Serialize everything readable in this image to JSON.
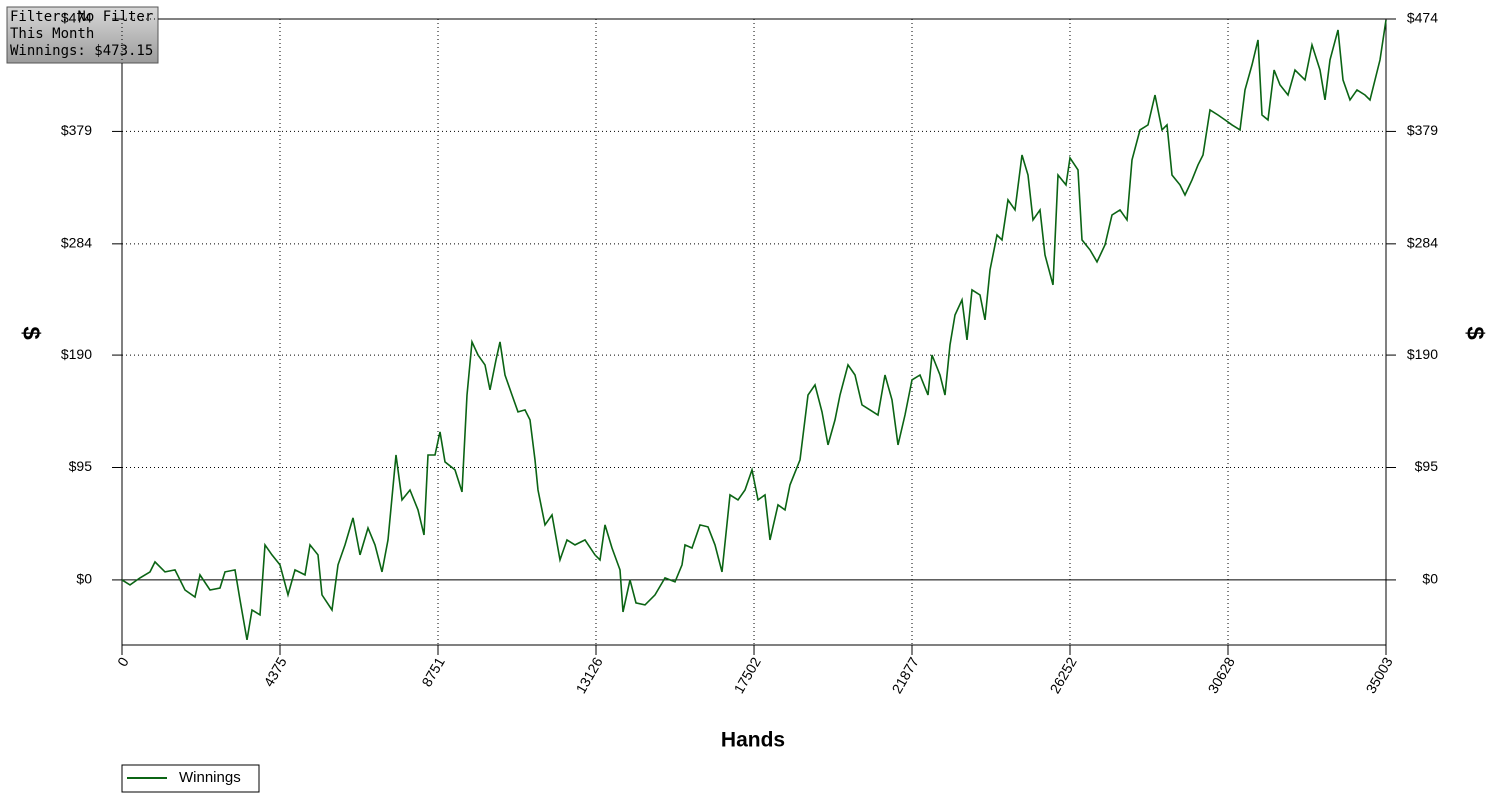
{
  "chart_data": {
    "type": "line",
    "annotation": [
      "Filter: No Filter",
      "This Month",
      "Winnings: $473.15"
    ],
    "x_label": "Hands",
    "y_label": "$",
    "legend": "bottom-left",
    "grid": true,
    "xlim": [
      0,
      35003
    ],
    "ylim": [
      -55,
      474
    ],
    "xticks": [
      0,
      4375,
      8751,
      13126,
      17502,
      21877,
      26252,
      30628,
      35003
    ],
    "yticks": [
      {
        "value": 0,
        "label": "$0"
      },
      {
        "value": 95,
        "label": "$95"
      },
      {
        "value": 190,
        "label": "$190"
      },
      {
        "value": 284,
        "label": "$284"
      },
      {
        "value": 379,
        "label": "$379"
      },
      {
        "value": 474,
        "label": "$474"
      }
    ],
    "x": [
      0,
      222,
      498,
      775,
      914,
      1191,
      1468,
      1745,
      2022,
      2160,
      2437,
      2714,
      2852,
      3129,
      3268,
      3462,
      3600,
      3822,
      3960,
      4154,
      4375,
      4597,
      4791,
      5068,
      5206,
      5428,
      5539,
      5816,
      5982,
      6176,
      6397,
      6591,
      6812,
      7006,
      7200,
      7366,
      7588,
      7754,
      7976,
      8197,
      8363,
      8474,
      8668,
      8806,
      8945,
      9222,
      9416,
      9554,
      9693,
      9859,
      10053,
      10191,
      10357,
      10468,
      10606,
      10800,
      10966,
      11160,
      11299,
      11437,
      11520,
      11714,
      11908,
      12130,
      12323,
      12545,
      12822,
      13099,
      13237,
      13376,
      13570,
      13791,
      13874,
      14068,
      14234,
      14483,
      14760,
      15037,
      15314,
      15508,
      15591,
      15785,
      16007,
      16228,
      16422,
      16616,
      16837,
      17059,
      17253,
      17447,
      17613,
      17806,
      17945,
      18167,
      18360,
      18499,
      18776,
      18997,
      19191,
      19385,
      19551,
      19745,
      19884,
      20105,
      20299,
      20493,
      20714,
      20936,
      21130,
      21324,
      21490,
      21684,
      21877,
      22099,
      22321,
      22431,
      22653,
      22791,
      22930,
      23068,
      23262,
      23401,
      23539,
      23761,
      23899,
      24038,
      24231,
      24370,
      24536,
      24730,
      24924,
      25090,
      25228,
      25422,
      25561,
      25782,
      25921,
      26142,
      26253,
      26474,
      26585,
      26807,
      27001,
      27222,
      27416,
      27638,
      27831,
      27970,
      28191,
      28413,
      28607,
      28801,
      28939,
      29078,
      29299,
      29438,
      29632,
      29798,
      29936,
      30130,
      30352,
      30545,
      30739,
      30961,
      31099,
      31293,
      31459,
      31570,
      31736,
      31903,
      32069,
      32290,
      32484,
      32761,
      32955,
      33176,
      33315,
      33453,
      33675,
      33813,
      34007,
      34201,
      34422,
      34561,
      34699,
      34838,
      35003
    ],
    "series": [
      {
        "name": "Winnings",
        "color": "#0b6414",
        "values": [
          0,
          -4.2,
          1.7,
          6.8,
          15.2,
          6.8,
          8.5,
          -8.5,
          -14.4,
          4.2,
          -8.5,
          -6.8,
          6.8,
          8.5,
          -16.9,
          -50.7,
          -25.4,
          -29.6,
          29.6,
          21.1,
          12.7,
          -12.7,
          8.5,
          4.2,
          29.6,
          21.1,
          -12.7,
          -25.4,
          12.7,
          29.6,
          52.4,
          21.1,
          43.9,
          29.6,
          6.8,
          33.8,
          105.6,
          67.6,
          76.0,
          59.2,
          38.0,
          105.6,
          105.6,
          125.1,
          99.7,
          93.0,
          74.4,
          156.3,
          201.1,
          190.1,
          181.7,
          160.6,
          185.9,
          201.1,
          173.2,
          156.3,
          142.0,
          143.7,
          135.2,
          101.4,
          76.0,
          46.5,
          54.9,
          16.9,
          33.8,
          29.6,
          33.8,
          21.1,
          16.9,
          46.5,
          27.0,
          8.5,
          -27.0,
          0,
          -19.4,
          -21.1,
          -12.7,
          1.7,
          -1.7,
          12.7,
          29.6,
          27.0,
          46.5,
          44.8,
          29.6,
          6.8,
          71.8,
          67.6,
          76.0,
          93.0,
          67.6,
          71.8,
          33.8,
          63.4,
          59.2,
          80.3,
          101.4,
          156.3,
          164.8,
          142.0,
          114.1,
          135.2,
          156.3,
          181.7,
          173.2,
          147.9,
          143.7,
          139.4,
          173.2,
          152.1,
          114.1,
          139.4,
          169.0,
          173.2,
          156.3,
          190.1,
          173.2,
          156.3,
          198.6,
          223.9,
          236.6,
          202.8,
          245.1,
          240.8,
          219.7,
          261.9,
          291.5,
          287.3,
          321.1,
          312.7,
          359.1,
          342.2,
          304.2,
          312.7,
          274.6,
          249.3,
          342.2,
          333.8,
          356.6,
          346.5,
          287.3,
          278.9,
          268.7,
          283.1,
          308.4,
          312.7,
          304.2,
          354.9,
          380.3,
          384.5,
          409.8,
          380.3,
          384.5,
          342.2,
          333.8,
          325.3,
          338.0,
          350.7,
          359.1,
          397.2,
          392.9,
          388.7,
          384.5,
          380.3,
          414.1,
          435.2,
          456.3,
          392.9,
          388.7,
          430.9,
          418.3,
          409.8,
          430.9,
          422.5,
          452.1,
          430.9,
          405.6,
          439.4,
          464.8,
          422.5,
          405.6,
          414.1,
          409.8,
          405.6,
          422.5,
          439.4,
          473.15
        ]
      }
    ]
  }
}
